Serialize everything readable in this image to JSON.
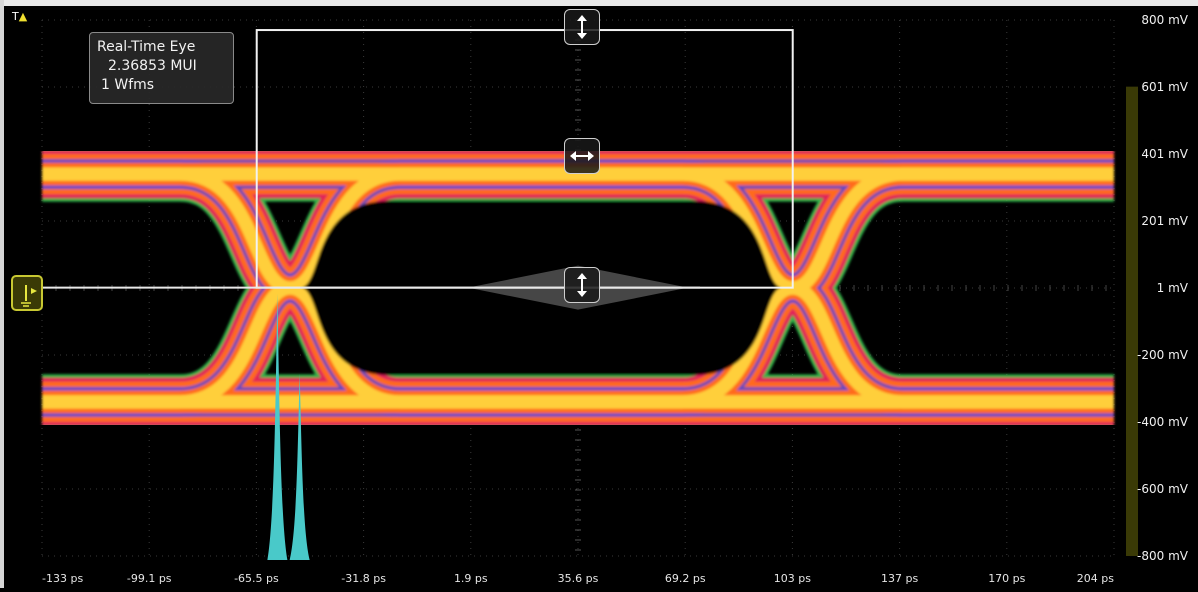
{
  "measurement": {
    "title": "Real-Time Eye",
    "value": "2.36853 MUI",
    "waveforms": "1 Wfms"
  },
  "trigger_label": "T",
  "colors": {
    "background": "#000000",
    "grid": "#3a3a3a",
    "eye_outer": "#2fb24a",
    "eye_core": "#ffcf3a",
    "eye_mid": "#ff6a1a",
    "eye_hot": "#e0205a",
    "eye_blue": "#5a48c8",
    "histogram": "#49c9c9",
    "right_bar": "#3a3a06"
  },
  "icons": {
    "trigger_marker": "trigger-level-icon",
    "top_handle": "vertical-arrow-icon",
    "middle_handle": "horizontal-arrow-icon",
    "bottom_handle": "vertical-arrow-icon"
  },
  "chart_data": {
    "type": "eye-diagram",
    "x_tick_labels": [
      "-133 ps",
      "-99.1 ps",
      "-65.5 ps",
      "-31.8 ps",
      "1.9 ps",
      "35.6 ps",
      "69.2 ps",
      "103 ps",
      "137 ps",
      "170 ps",
      "204 ps"
    ],
    "y_tick_labels": [
      "800 mV",
      "601 mV",
      "401 mV",
      "201 mV",
      "1 mV",
      "-200 mV",
      "-400 mV",
      "-600 mV",
      "-800 mV"
    ],
    "xlim_ps": [
      -133,
      204
    ],
    "ylim_mV": [
      -800,
      800
    ],
    "eye": {
      "crossings_ps": [
        -55,
        103
      ],
      "crossing_level_mV": 1,
      "high_level_mV": 340,
      "low_level_mV": -340,
      "band_halfwidth_mV": 80
    },
    "mask_box": {
      "x_ps": [
        -65.5,
        103
      ],
      "y_mV": [
        1,
        770
      ]
    },
    "jitter_histogram": {
      "peaks_ps": [
        -59,
        -52
      ],
      "relative_heights": [
        1.0,
        0.7
      ]
    },
    "grid": true
  }
}
